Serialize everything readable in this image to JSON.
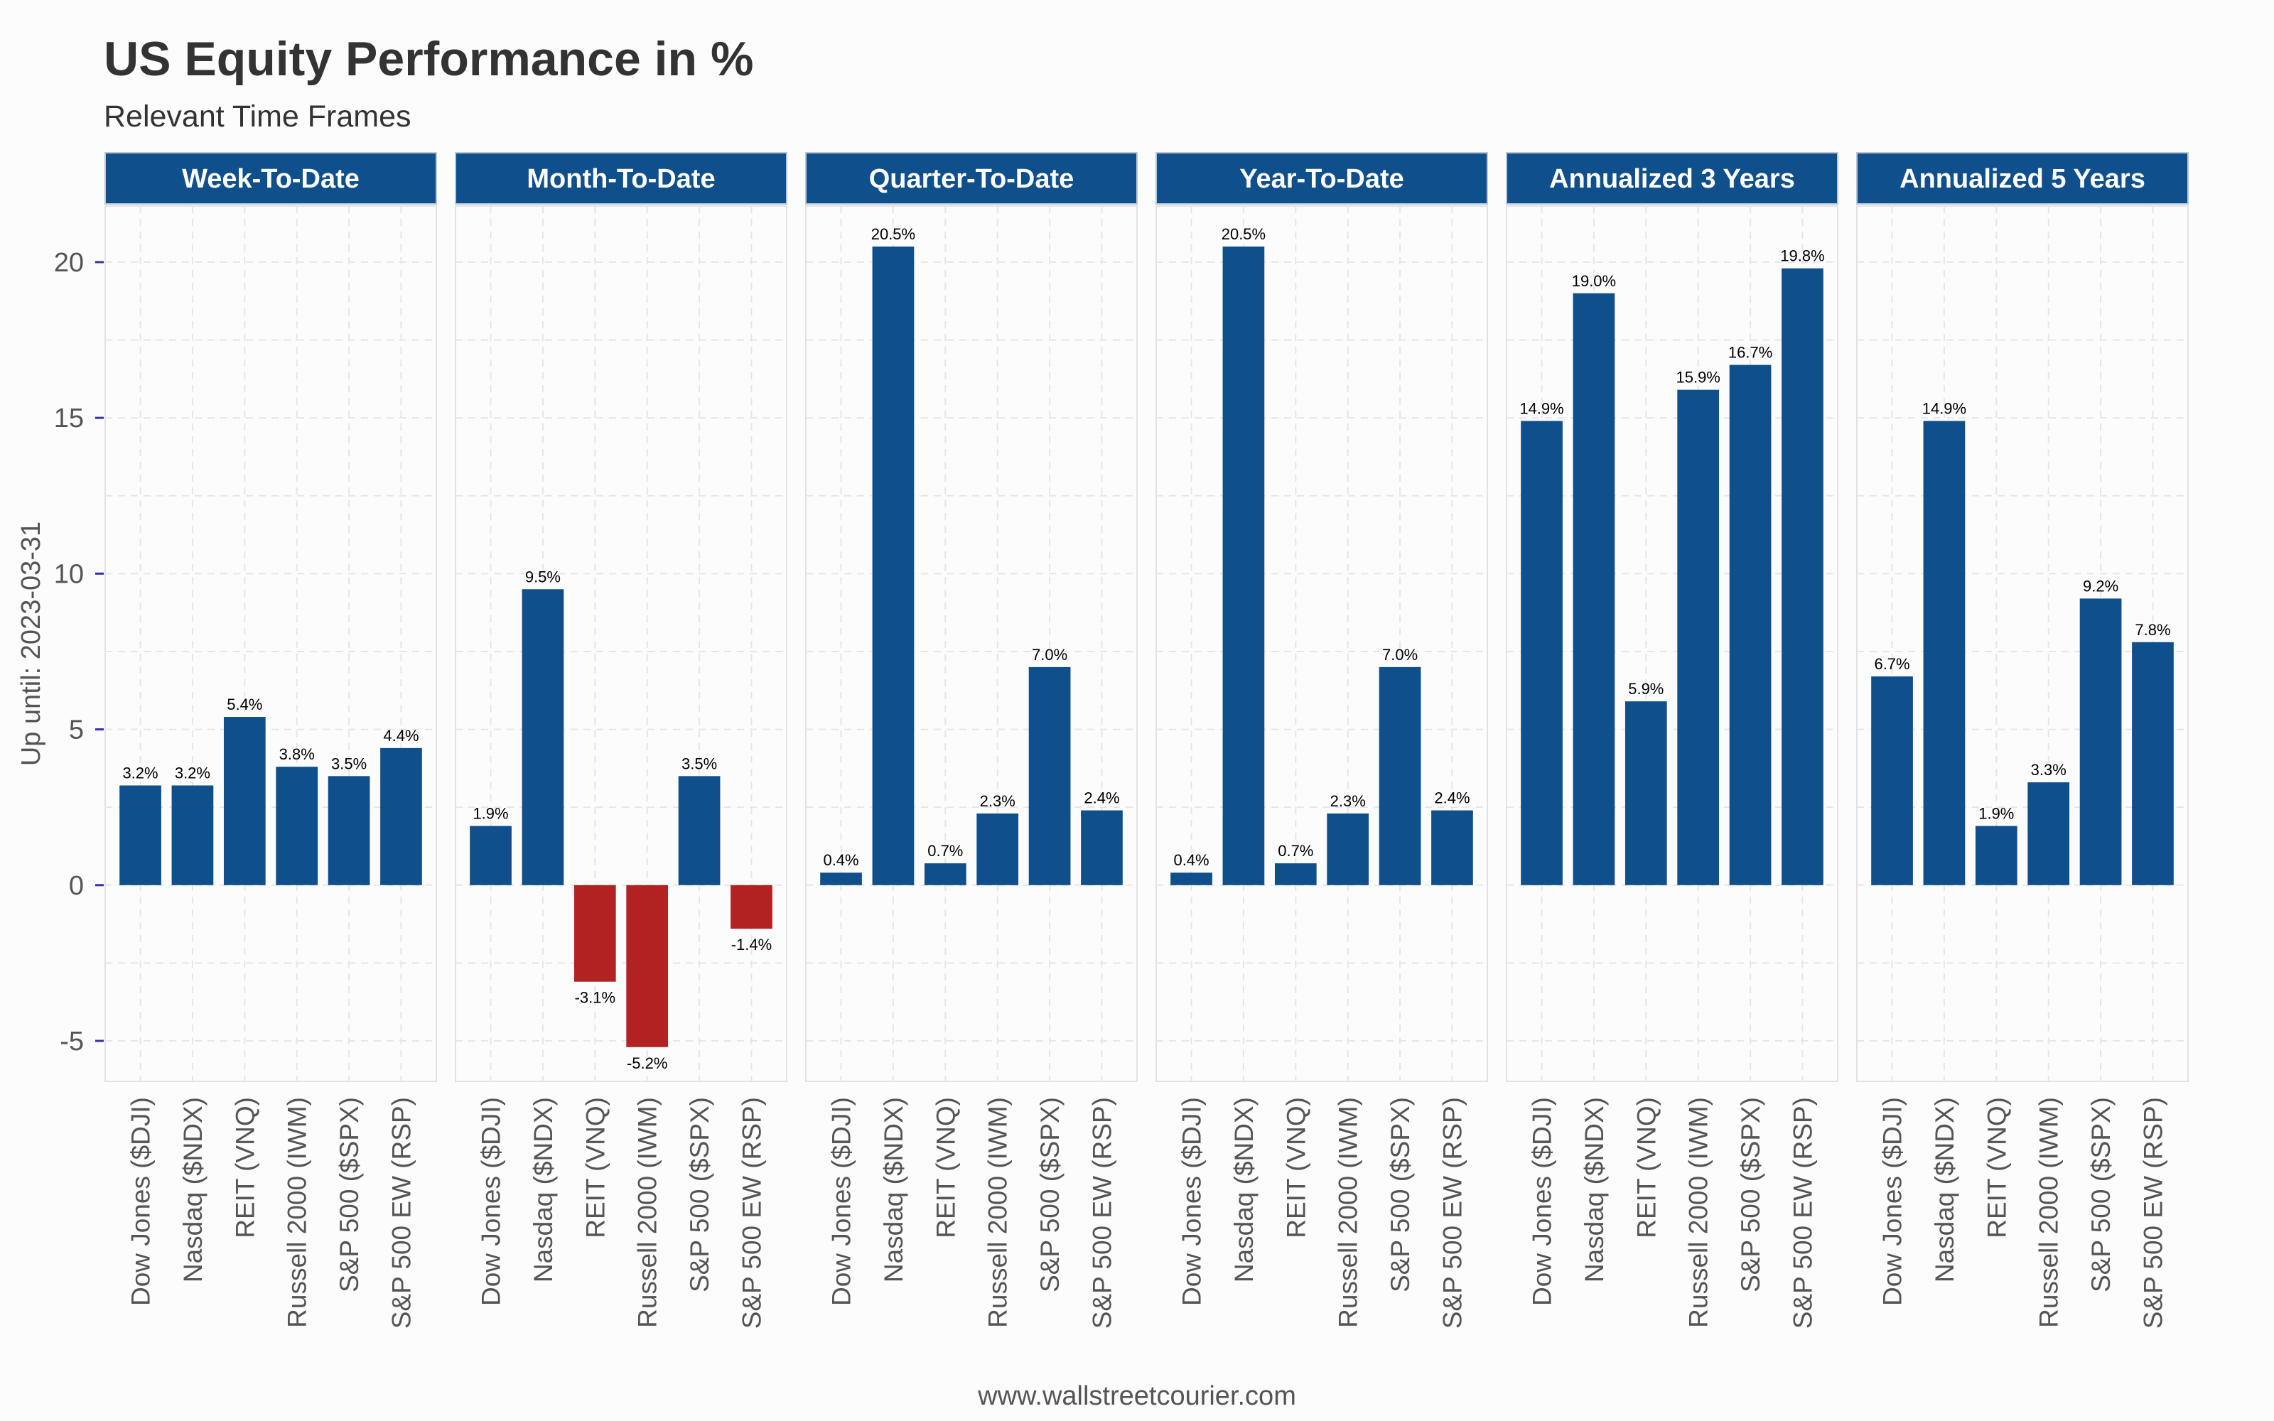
{
  "title": "US Equity Performance in %",
  "subtitle": "Relevant Time Frames",
  "footer": "www.wallstreetcourier.com",
  "colors": {
    "positive": "#0f4f8c",
    "negative": "#b22222",
    "strip": "#0f4f8c"
  },
  "chart_data": {
    "type": "bar",
    "ylabel": "Up until: 2023-03-31",
    "ylim": [
      -6.3,
      21.8
    ],
    "yticks": [
      -5,
      0,
      5,
      10,
      15,
      20
    ],
    "grid": true,
    "categories": [
      "Dow Jones ($DJI)",
      "Nasdaq ($NDX)",
      "REIT (VNQ)",
      "Russell 2000 (IWM)",
      "S&P 500 ($SPX)",
      "S&P 500 EW (RSP)"
    ],
    "panels": [
      {
        "name": "Week-To-Date",
        "values": [
          3.2,
          3.2,
          5.4,
          3.8,
          3.5,
          4.4
        ],
        "labels": [
          "3.2%",
          "3.2%",
          "5.4%",
          "3.8%",
          "3.5%",
          "4.4%"
        ]
      },
      {
        "name": "Month-To-Date",
        "values": [
          1.9,
          9.5,
          -3.1,
          -5.2,
          3.5,
          -1.4
        ],
        "labels": [
          "1.9%",
          "9.5%",
          "-3.1%",
          "-5.2%",
          "3.5%",
          "-1.4%"
        ]
      },
      {
        "name": "Quarter-To-Date",
        "values": [
          0.4,
          20.5,
          0.7,
          2.3,
          7.0,
          2.4
        ],
        "labels": [
          "0.4%",
          "20.5%",
          "0.7%",
          "2.3%",
          "7.0%",
          "2.4%"
        ]
      },
      {
        "name": "Year-To-Date",
        "values": [
          0.4,
          20.5,
          0.7,
          2.3,
          7.0,
          2.4
        ],
        "labels": [
          "0.4%",
          "20.5%",
          "0.7%",
          "2.3%",
          "7.0%",
          "2.4%"
        ]
      },
      {
        "name": "Annualized 3 Years",
        "values": [
          14.9,
          19.0,
          5.9,
          15.9,
          16.7,
          19.8
        ],
        "labels": [
          "14.9%",
          "19.0%",
          "5.9%",
          "15.9%",
          "16.7%",
          "19.8%"
        ]
      },
      {
        "name": "Annualized 5 Years",
        "values": [
          6.7,
          14.9,
          1.9,
          3.3,
          9.2,
          7.8
        ],
        "labels": [
          "6.7%",
          "14.9%",
          "1.9%",
          "3.3%",
          "9.2%",
          "7.8%"
        ]
      }
    ]
  }
}
